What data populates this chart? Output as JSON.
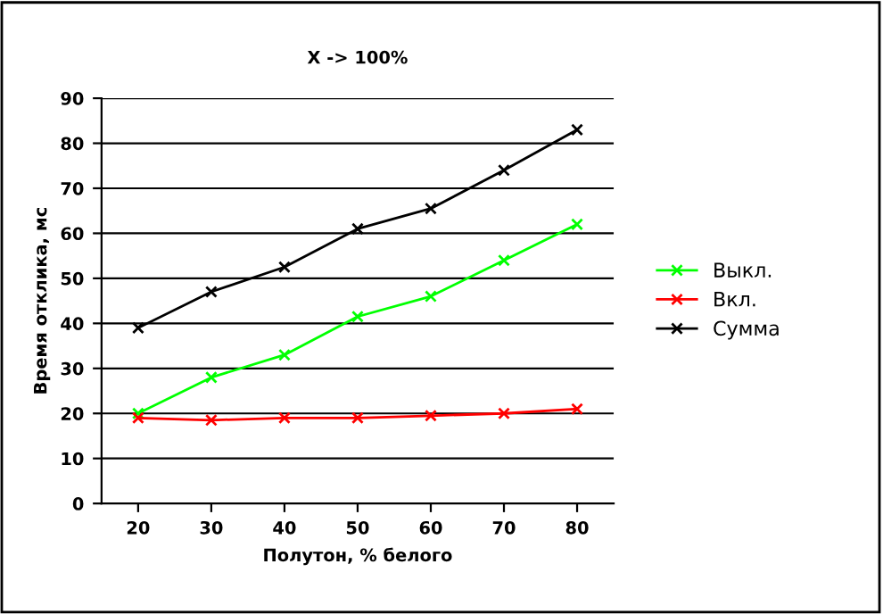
{
  "chart_data": {
    "type": "line",
    "title": "X -> 100%",
    "xlabel": "Полутон, % белого",
    "ylabel": "Время отклика, мс",
    "categories": [
      "20",
      "30",
      "40",
      "50",
      "60",
      "70",
      "80"
    ],
    "series": [
      {
        "name": "Выкл.",
        "color": "#00ff00",
        "values": [
          20,
          28,
          33,
          41.5,
          46,
          54,
          62
        ]
      },
      {
        "name": "Вкл.",
        "color": "#ff0000",
        "values": [
          19,
          18.5,
          19,
          19,
          19.5,
          20,
          21
        ]
      },
      {
        "name": "Сумма",
        "color": "#000000",
        "values": [
          39,
          47,
          52.5,
          61,
          65.5,
          74,
          83
        ]
      }
    ],
    "ylim": [
      0,
      90
    ],
    "yticks": [
      0,
      10,
      20,
      30,
      40,
      50,
      60,
      70,
      80,
      90
    ],
    "grid": "y",
    "legend": "right",
    "marker": "cross",
    "line_style": "solid"
  }
}
